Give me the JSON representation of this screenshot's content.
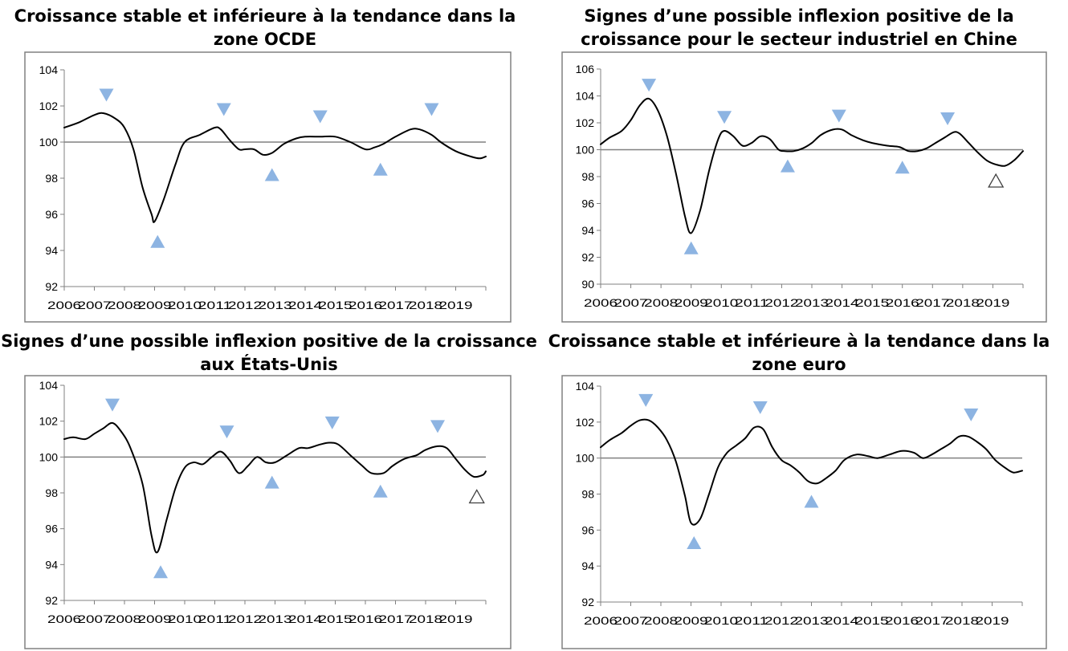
{
  "panels": [
    {
      "title_lines": [
        "Croissance stable et inférieure à la tendance dans la",
        "zone OCDE"
      ]
    },
    {
      "title_lines": [
        "Signes d’une possible inflexion positive de la",
        "croissance pour le secteur industriel en Chine"
      ]
    },
    {
      "title_lines": [
        "Signes d’une possible inflexion positive de la croissance",
        "aux États-Unis"
      ]
    },
    {
      "title_lines": [
        "Croissance stable et inférieure à la tendance dans la",
        "zone euro"
      ]
    }
  ],
  "chart_data": [
    {
      "type": "line",
      "title": "Croissance stable et inférieure à la tendance dans la zone OCDE",
      "x_tick_labels": [
        "2006",
        "2007",
        "2008",
        "2009",
        "2010",
        "2011",
        "2012",
        "2013",
        "2014",
        "2015",
        "2016",
        "2017",
        "2018",
        "2019"
      ],
      "xlim": [
        2006,
        2020
      ],
      "ylim": [
        92,
        104
      ],
      "y_ticks": [
        92,
        94,
        96,
        98,
        100,
        102,
        104
      ],
      "reference_line": 100,
      "line_color": "#000000",
      "marker_color": "#8DB4E2",
      "series": [
        {
          "x": [
            2006.0,
            2006.5,
            2007.0,
            2007.3,
            2007.7,
            2008.0,
            2008.3,
            2008.6,
            2008.9,
            2009.0,
            2009.3,
            2009.7,
            2010.0,
            2010.5,
            2011.0,
            2011.2,
            2011.5,
            2011.8,
            2012.0,
            2012.3,
            2012.6,
            2012.9,
            2013.3,
            2013.7,
            2014.0,
            2014.5,
            2015.0,
            2015.5,
            2016.0,
            2016.3,
            2016.6,
            2017.0,
            2017.5,
            2017.8,
            2018.2,
            2018.5,
            2019.0,
            2019.5,
            2019.8,
            2020.0
          ],
          "values": [
            100.8,
            101.1,
            101.5,
            101.6,
            101.3,
            100.8,
            99.6,
            97.5,
            96.0,
            95.6,
            96.8,
            98.8,
            100.0,
            100.4,
            100.8,
            100.7,
            100.1,
            99.6,
            99.6,
            99.6,
            99.3,
            99.4,
            99.9,
            100.2,
            100.3,
            100.3,
            100.3,
            100.0,
            99.6,
            99.7,
            99.9,
            100.3,
            100.7,
            100.7,
            100.4,
            100.0,
            99.5,
            99.2,
            99.1,
            99.2
          ]
        }
      ],
      "markers": [
        {
          "x": 2007.4,
          "y": 102.6,
          "kind": "peak"
        },
        {
          "x": 2009.1,
          "y": 94.5,
          "kind": "trough"
        },
        {
          "x": 2011.3,
          "y": 101.8,
          "kind": "peak"
        },
        {
          "x": 2012.9,
          "y": 98.2,
          "kind": "trough"
        },
        {
          "x": 2014.5,
          "y": 101.4,
          "kind": "peak"
        },
        {
          "x": 2016.5,
          "y": 98.5,
          "kind": "trough"
        },
        {
          "x": 2018.2,
          "y": 101.8,
          "kind": "peak"
        }
      ]
    },
    {
      "type": "line",
      "title": "Signes d’une possible inflexion positive de la croissance pour le secteur industriel en Chine",
      "x_tick_labels": [
        "2006",
        "2007",
        "2008",
        "2009",
        "2010",
        "2011",
        "2012",
        "2013",
        "2014",
        "2015",
        "2016",
        "2017",
        "2018",
        "2019"
      ],
      "xlim": [
        2006,
        2020
      ],
      "ylim": [
        90,
        106
      ],
      "y_ticks": [
        90,
        92,
        94,
        96,
        98,
        100,
        102,
        104,
        106
      ],
      "reference_line": 100,
      "line_color": "#000000",
      "marker_color": "#8DB4E2",
      "series": [
        {
          "x": [
            2006.0,
            2006.3,
            2006.7,
            2007.0,
            2007.3,
            2007.6,
            2007.9,
            2008.2,
            2008.5,
            2008.8,
            2009.0,
            2009.3,
            2009.6,
            2009.9,
            2010.1,
            2010.4,
            2010.7,
            2011.0,
            2011.3,
            2011.6,
            2011.9,
            2012.1,
            2012.4,
            2012.7,
            2013.0,
            2013.3,
            2013.7,
            2014.0,
            2014.3,
            2014.7,
            2015.0,
            2015.5,
            2015.9,
            2016.2,
            2016.5,
            2016.8,
            2017.1,
            2017.4,
            2017.7,
            2017.9,
            2018.2,
            2018.5,
            2018.8,
            2019.1,
            2019.4,
            2019.7,
            2020.0
          ],
          "values": [
            100.4,
            100.9,
            101.4,
            102.2,
            103.3,
            103.8,
            102.9,
            101.0,
            98.2,
            95.0,
            93.8,
            95.5,
            98.5,
            100.8,
            101.4,
            101.0,
            100.3,
            100.5,
            101.0,
            100.8,
            100.0,
            99.9,
            99.9,
            100.1,
            100.5,
            101.1,
            101.5,
            101.5,
            101.1,
            100.7,
            100.5,
            100.3,
            100.2,
            99.9,
            99.9,
            100.1,
            100.5,
            100.9,
            101.3,
            101.2,
            100.5,
            99.8,
            99.2,
            98.9,
            98.8,
            99.2,
            99.9
          ]
        }
      ],
      "markers": [
        {
          "x": 2007.6,
          "y": 104.8,
          "kind": "peak"
        },
        {
          "x": 2009.0,
          "y": 92.7,
          "kind": "trough"
        },
        {
          "x": 2010.1,
          "y": 102.4,
          "kind": "peak"
        },
        {
          "x": 2012.2,
          "y": 98.8,
          "kind": "trough"
        },
        {
          "x": 2013.9,
          "y": 102.5,
          "kind": "peak"
        },
        {
          "x": 2016.0,
          "y": 98.7,
          "kind": "trough"
        },
        {
          "x": 2017.5,
          "y": 102.3,
          "kind": "peak"
        },
        {
          "x": 2019.1,
          "y": 97.7,
          "kind": "trough-outline"
        }
      ]
    },
    {
      "type": "line",
      "title": "Signes d’une possible inflexion positive de la croissance aux États-Unis",
      "x_tick_labels": [
        "2006",
        "2007",
        "2008",
        "2009",
        "2010",
        "2011",
        "2012",
        "2013",
        "2014",
        "2015",
        "2016",
        "2017",
        "2018",
        "2019"
      ],
      "xlim": [
        2006,
        2020
      ],
      "ylim": [
        92,
        104
      ],
      "y_ticks": [
        92,
        94,
        96,
        98,
        100,
        102,
        104
      ],
      "reference_line": 100,
      "line_color": "#000000",
      "marker_color": "#8DB4E2",
      "series": [
        {
          "x": [
            2006.0,
            2006.3,
            2006.7,
            2007.0,
            2007.3,
            2007.6,
            2007.9,
            2008.2,
            2008.6,
            2008.9,
            2009.1,
            2009.4,
            2009.7,
            2010.0,
            2010.3,
            2010.6,
            2010.9,
            2011.2,
            2011.5,
            2011.8,
            2012.1,
            2012.4,
            2012.7,
            2013.0,
            2013.4,
            2013.8,
            2014.1,
            2014.5,
            2014.8,
            2015.1,
            2015.5,
            2015.9,
            2016.2,
            2016.6,
            2016.9,
            2017.3,
            2017.7,
            2018.0,
            2018.4,
            2018.7,
            2019.0,
            2019.3,
            2019.6,
            2019.9,
            2020.0
          ],
          "values": [
            101.0,
            101.1,
            101.0,
            101.3,
            101.6,
            101.9,
            101.4,
            100.5,
            98.5,
            95.6,
            94.7,
            96.5,
            98.3,
            99.4,
            99.7,
            99.6,
            100.0,
            100.3,
            99.8,
            99.1,
            99.5,
            100.0,
            99.7,
            99.7,
            100.1,
            100.5,
            100.5,
            100.7,
            100.8,
            100.7,
            100.1,
            99.5,
            99.1,
            99.1,
            99.5,
            99.9,
            100.1,
            100.4,
            100.6,
            100.5,
            99.9,
            99.3,
            98.9,
            99.0,
            99.2
          ]
        }
      ],
      "markers": [
        {
          "x": 2007.6,
          "y": 102.9,
          "kind": "peak"
        },
        {
          "x": 2009.2,
          "y": 93.6,
          "kind": "trough"
        },
        {
          "x": 2011.4,
          "y": 101.4,
          "kind": "peak"
        },
        {
          "x": 2012.9,
          "y": 98.6,
          "kind": "trough"
        },
        {
          "x": 2014.9,
          "y": 101.9,
          "kind": "peak"
        },
        {
          "x": 2016.5,
          "y": 98.1,
          "kind": "trough"
        },
        {
          "x": 2018.4,
          "y": 101.7,
          "kind": "peak"
        },
        {
          "x": 2019.7,
          "y": 97.8,
          "kind": "trough-outline"
        }
      ]
    },
    {
      "type": "line",
      "title": "Croissance stable et inférieure à la tendance dans la zone euro",
      "x_tick_labels": [
        "2006",
        "2007",
        "2008",
        "2009",
        "2010",
        "2011",
        "2012",
        "2013",
        "2014",
        "2015",
        "2016",
        "2017",
        "2018",
        "2019"
      ],
      "xlim": [
        2006,
        2020
      ],
      "ylim": [
        92,
        104
      ],
      "y_ticks": [
        92,
        94,
        96,
        98,
        100,
        102,
        104
      ],
      "reference_line": 100,
      "line_color": "#000000",
      "marker_color": "#8DB4E2",
      "series": [
        {
          "x": [
            2006.0,
            2006.3,
            2006.7,
            2007.0,
            2007.3,
            2007.6,
            2007.9,
            2008.2,
            2008.5,
            2008.8,
            2009.0,
            2009.3,
            2009.6,
            2009.9,
            2010.2,
            2010.5,
            2010.8,
            2011.1,
            2011.4,
            2011.7,
            2012.0,
            2012.3,
            2012.6,
            2012.9,
            2013.2,
            2013.5,
            2013.8,
            2014.1,
            2014.5,
            2014.9,
            2015.2,
            2015.6,
            2016.0,
            2016.4,
            2016.7,
            2017.0,
            2017.3,
            2017.6,
            2017.9,
            2018.2,
            2018.5,
            2018.8,
            2019.1,
            2019.4,
            2019.7,
            2020.0
          ],
          "values": [
            100.6,
            101.0,
            101.4,
            101.8,
            102.1,
            102.1,
            101.7,
            101.0,
            99.8,
            97.9,
            96.4,
            96.6,
            98.0,
            99.5,
            100.3,
            100.7,
            101.1,
            101.7,
            101.6,
            100.6,
            99.9,
            99.6,
            99.2,
            98.7,
            98.6,
            98.9,
            99.3,
            99.9,
            100.2,
            100.1,
            100.0,
            100.2,
            100.4,
            100.3,
            100.0,
            100.2,
            100.5,
            100.8,
            101.2,
            101.2,
            100.9,
            100.5,
            99.9,
            99.5,
            99.2,
            99.3
          ]
        }
      ],
      "markers": [
        {
          "x": 2007.5,
          "y": 103.2,
          "kind": "peak"
        },
        {
          "x": 2009.1,
          "y": 95.3,
          "kind": "trough"
        },
        {
          "x": 2011.3,
          "y": 102.8,
          "kind": "peak"
        },
        {
          "x": 2013.0,
          "y": 97.6,
          "kind": "trough"
        },
        {
          "x": 2018.3,
          "y": 102.4,
          "kind": "peak"
        }
      ]
    }
  ]
}
